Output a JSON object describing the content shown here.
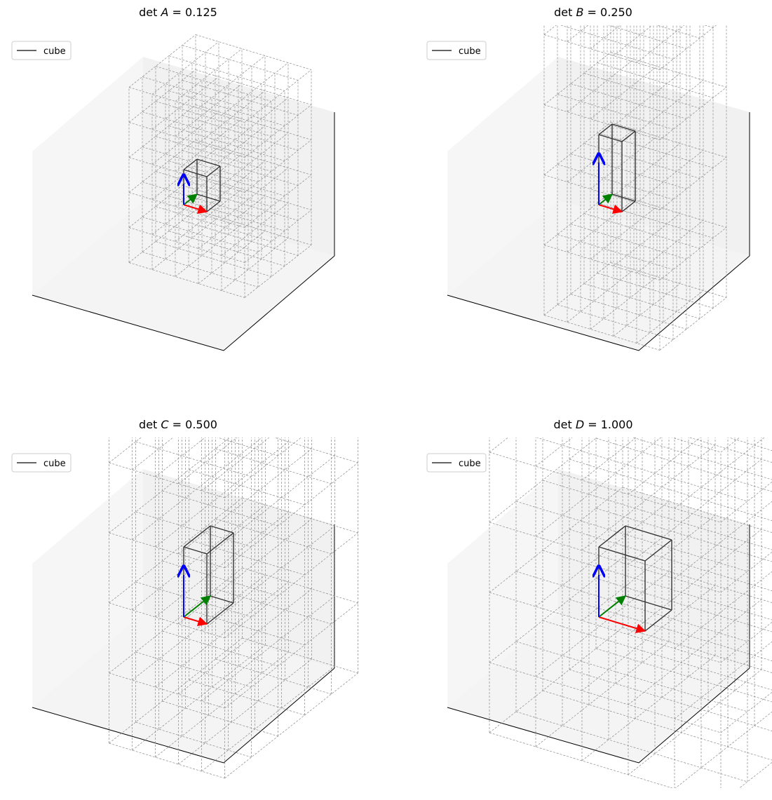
{
  "chart_data": [
    {
      "type": "3d-wireframe",
      "title": {
        "prefix": "det",
        "symbol": "A",
        "value": "0.125"
      },
      "legend": {
        "label": "cube",
        "placement": "upper-left"
      },
      "grid": true,
      "grid_scale": [
        0.5,
        0.5,
        0.5
      ],
      "grid_layers": 5,
      "basis_vectors": {
        "x": "#ff0000",
        "y": "#008000",
        "z": "#0000ff"
      }
    },
    {
      "type": "3d-wireframe",
      "title": {
        "prefix": "det",
        "symbol": "B",
        "value": "0.250"
      },
      "legend": {
        "label": "cube",
        "placement": "upper-left"
      },
      "grid": true,
      "grid_scale": [
        0.5,
        0.5,
        1.0
      ],
      "grid_layers": 5,
      "basis_vectors": {
        "x": "#ff0000",
        "y": "#008000",
        "z": "#0000ff"
      }
    },
    {
      "type": "3d-wireframe",
      "title": {
        "prefix": "det",
        "symbol": "C",
        "value": "0.500"
      },
      "legend": {
        "label": "cube",
        "placement": "upper-left"
      },
      "grid": true,
      "grid_scale": [
        0.5,
        1.0,
        1.0
      ],
      "grid_layers": 5,
      "basis_vectors": {
        "x": "#ff0000",
        "y": "#008000",
        "z": "#0000ff"
      }
    },
    {
      "type": "3d-wireframe",
      "title": {
        "prefix": "det",
        "symbol": "D",
        "value": "1.000"
      },
      "legend": {
        "label": "cube",
        "placement": "upper-left"
      },
      "grid": true,
      "grid_scale": [
        1.0,
        1.0,
        1.0
      ],
      "grid_layers": 5,
      "basis_vectors": {
        "x": "#ff0000",
        "y": "#008000",
        "z": "#0000ff"
      }
    }
  ],
  "colors": {
    "cube": "#333333",
    "grid": "#8a8a8a",
    "pane_left": "#f6f6f6",
    "pane_right": "#f1f1f1",
    "pane_floor": "#f4f4f4",
    "axis": "#000000"
  }
}
